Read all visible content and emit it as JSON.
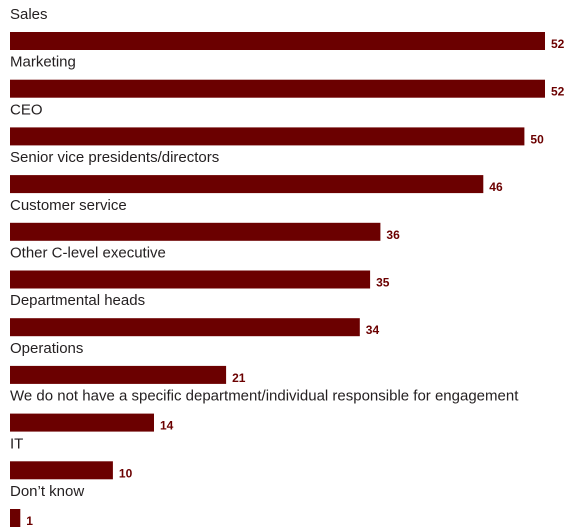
{
  "chart_data": {
    "type": "bar",
    "orientation": "horizontal",
    "categories": [
      "Sales",
      "Marketing",
      "CEO",
      "Senior vice presidents/directors",
      "Customer service",
      "Other C-level executive",
      "Departmental heads",
      "Operations",
      "We do not have a specific department/individual responsible for engagement",
      "IT",
      "Don’t know"
    ],
    "values": [
      52,
      52,
      50,
      46,
      36,
      35,
      34,
      21,
      14,
      10,
      1
    ],
    "title": "",
    "xlabel": "",
    "ylabel": "",
    "xlim": [
      0,
      52
    ],
    "grid": false,
    "legend": "none",
    "bar_color": "#6b0000",
    "value_label_color": "#6b0000",
    "label_color": "#231f20"
  }
}
